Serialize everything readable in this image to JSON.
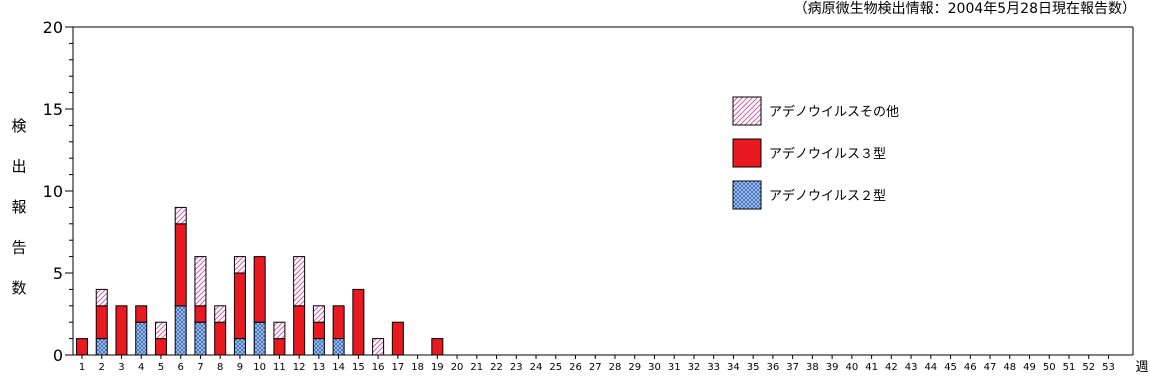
{
  "chart_data": {
    "type": "bar",
    "stacked": true,
    "source_note": "（病原微生物検出情報：2004年5月28日現在報告数）",
    "ylabel": "検出報告数",
    "xlabel": "週",
    "ylim": [
      0,
      20
    ],
    "yticks": [
      0,
      5,
      10,
      15,
      20
    ],
    "categories": [
      "1",
      "2",
      "3",
      "4",
      "5",
      "6",
      "7",
      "8",
      "9",
      "10",
      "11",
      "12",
      "13",
      "14",
      "15",
      "16",
      "17",
      "18",
      "19",
      "20",
      "21",
      "22",
      "23",
      "24",
      "25",
      "26",
      "27",
      "28",
      "29",
      "30",
      "31",
      "32",
      "33",
      "34",
      "35",
      "36",
      "37",
      "38",
      "39",
      "40",
      "41",
      "42",
      "43",
      "44",
      "45",
      "46",
      "47",
      "48",
      "49",
      "50",
      "51",
      "52",
      "53"
    ],
    "series": [
      {
        "name": "アデノウイルス２型",
        "color": "#5b8fd6",
        "pattern": "crosshatch-blue",
        "values": [
          0,
          1,
          0,
          2,
          0,
          3,
          2,
          0,
          1,
          2,
          0,
          0,
          1,
          1,
          0,
          0,
          0,
          0,
          0,
          0,
          0,
          0,
          0,
          0,
          0,
          0,
          0,
          0,
          0,
          0,
          0,
          0,
          0,
          0,
          0,
          0,
          0,
          0,
          0,
          0,
          0,
          0,
          0,
          0,
          0,
          0,
          0,
          0,
          0,
          0,
          0,
          0,
          0
        ]
      },
      {
        "name": "アデノウイルス３型",
        "color": "#e8191f",
        "pattern": "solid-red",
        "values": [
          1,
          2,
          3,
          1,
          1,
          5,
          1,
          2,
          4,
          4,
          1,
          3,
          1,
          2,
          4,
          0,
          2,
          0,
          1,
          0,
          0,
          0,
          0,
          0,
          0,
          0,
          0,
          0,
          0,
          0,
          0,
          0,
          0,
          0,
          0,
          0,
          0,
          0,
          0,
          0,
          0,
          0,
          0,
          0,
          0,
          0,
          0,
          0,
          0,
          0,
          0,
          0,
          0
        ]
      },
      {
        "name": "アデノウイルスその他",
        "color": "#e070b0",
        "pattern": "diagonal-pink",
        "values": [
          0,
          1,
          0,
          0,
          1,
          1,
          3,
          1,
          1,
          0,
          1,
          3,
          1,
          0,
          0,
          1,
          0,
          0,
          0,
          0,
          0,
          0,
          0,
          0,
          0,
          0,
          0,
          0,
          0,
          0,
          0,
          0,
          0,
          0,
          0,
          0,
          0,
          0,
          0,
          0,
          0,
          0,
          0,
          0,
          0,
          0,
          0,
          0,
          0,
          0,
          0,
          0,
          0
        ]
      }
    ],
    "legend": {
      "placement": "right-center",
      "order": [
        "アデノウイルスその他",
        "アデノウイルス３型",
        "アデノウイルス２型"
      ]
    },
    "grid": false
  }
}
